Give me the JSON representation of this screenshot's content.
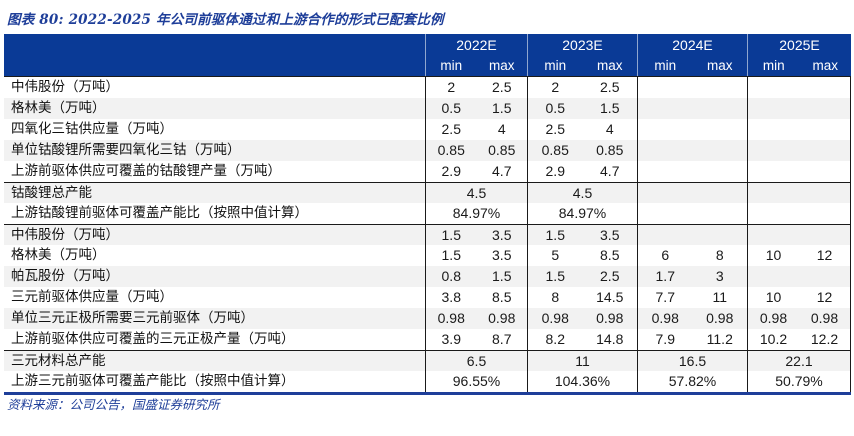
{
  "title": "图表 80:  2022-2025 年公司前驱体通过和上游合作的形式已配套比例",
  "source": "资料来源：公司公告，国盛证券研究所",
  "colors": {
    "header_bg": "#0a3a96",
    "title_blue": "#1e3e99",
    "stripe_gray": "#f2f2f2",
    "border_dark": "#1a1a1a"
  },
  "table": {
    "year_headers": [
      "2022E",
      "2023E",
      "2024E",
      "2025E"
    ],
    "subheaders": [
      "min",
      "max"
    ],
    "rows": [
      {
        "label": "中伟股份（万吨）",
        "span": false,
        "values": [
          "2",
          "2.5",
          "2",
          "2.5",
          "",
          "",
          "",
          ""
        ]
      },
      {
        "label": "格林美（万吨）",
        "span": false,
        "values": [
          "0.5",
          "1.5",
          "0.5",
          "1.5",
          "",
          "",
          "",
          ""
        ]
      },
      {
        "label": "四氧化三钴供应量（万吨）",
        "span": false,
        "values": [
          "2.5",
          "4",
          "2.5",
          "4",
          "",
          "",
          "",
          ""
        ]
      },
      {
        "label": "单位钴酸锂所需要四氧化三钴（万吨）",
        "span": false,
        "values": [
          "0.85",
          "0.85",
          "0.85",
          "0.85",
          "",
          "",
          "",
          ""
        ]
      },
      {
        "label": "上游前驱体供应可覆盖的钴酸锂产量（万吨）",
        "span": false,
        "values": [
          "2.9",
          "4.7",
          "2.9",
          "4.7",
          "",
          "",
          "",
          ""
        ]
      },
      {
        "label": "钴酸锂总产能",
        "span": true,
        "section_start": true,
        "values": [
          "4.5",
          "4.5",
          "",
          ""
        ]
      },
      {
        "label": "上游钴酸锂前驱体可覆盖产能比（按照中值计算）",
        "span": true,
        "values": [
          "84.97%",
          "84.97%",
          "",
          ""
        ]
      },
      {
        "label": "中伟股份（万吨）",
        "span": false,
        "section_start": true,
        "values": [
          "1.5",
          "3.5",
          "1.5",
          "3.5",
          "",
          "",
          "",
          ""
        ]
      },
      {
        "label": "格林美（万吨）",
        "span": false,
        "values": [
          "1.5",
          "3.5",
          "5",
          "8.5",
          "6",
          "8",
          "10",
          "12"
        ]
      },
      {
        "label": "帕瓦股份（万吨）",
        "span": false,
        "values": [
          "0.8",
          "1.5",
          "1.5",
          "2.5",
          "1.7",
          "3",
          "",
          ""
        ]
      },
      {
        "label": "三元前驱体供应量（万吨）",
        "span": false,
        "values": [
          "3.8",
          "8.5",
          "8",
          "14.5",
          "7.7",
          "11",
          "10",
          "12"
        ]
      },
      {
        "label": "单位三元正极所需要三元前驱体（万吨）",
        "span": false,
        "values": [
          "0.98",
          "0.98",
          "0.98",
          "0.98",
          "0.98",
          "0.98",
          "0.98",
          "0.98"
        ]
      },
      {
        "label": "上游前驱体供应可覆盖的三元正极产量（万吨）",
        "span": false,
        "values": [
          "3.9",
          "8.7",
          "8.2",
          "14.8",
          "7.9",
          "11.2",
          "10.2",
          "12.2"
        ]
      },
      {
        "label": "三元材料总产能",
        "span": true,
        "section_start": true,
        "values": [
          "6.5",
          "11",
          "16.5",
          "22.1"
        ]
      },
      {
        "label": "上游三元前驱体可覆盖产能比（按照中值计算）",
        "span": true,
        "values": [
          "96.55%",
          "104.36%",
          "57.82%",
          "50.79%"
        ]
      }
    ]
  }
}
